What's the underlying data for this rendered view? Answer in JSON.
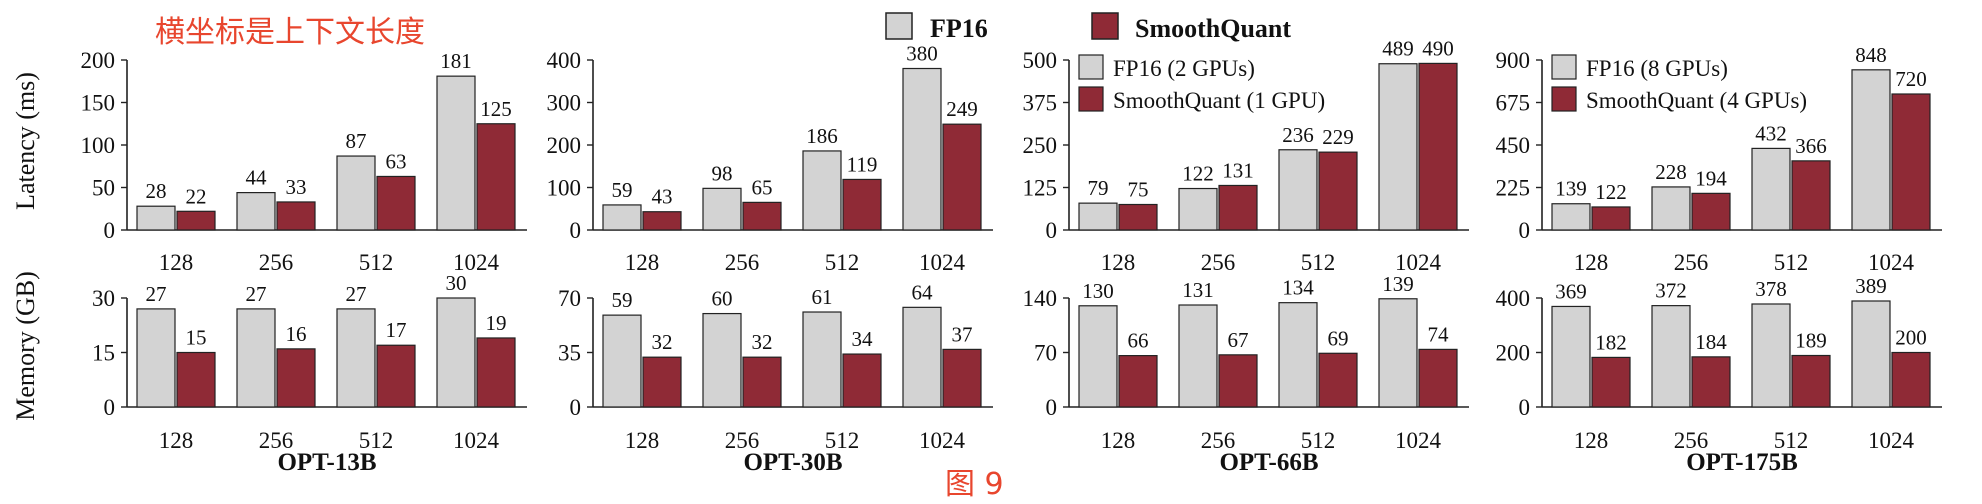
{
  "annotation_top": "横坐标是上下文长度",
  "annotation_bottom": "图 9",
  "colors": {
    "fp16": "#d3d3d3",
    "smoothquant": "#8f2a36",
    "annotation": "#e8462e",
    "axis": "#222222"
  },
  "legend_main": {
    "fp16": "FP16",
    "smoothquant": "SmoothQuant"
  },
  "ylabels": {
    "latency": "Latency (ms)",
    "memory": "Memory (GB)"
  },
  "chart_data": [
    {
      "type": "bar",
      "model": "OPT-13B",
      "metric": "Latency (ms)",
      "categories": [
        "128",
        "256",
        "512",
        "1024"
      ],
      "ylim": [
        0,
        200
      ],
      "yticks": [
        0,
        50,
        100,
        150,
        200
      ],
      "series": [
        {
          "name": "FP16",
          "values": [
            28,
            44,
            87,
            181
          ]
        },
        {
          "name": "SmoothQuant",
          "values": [
            22,
            33,
            63,
            125
          ]
        }
      ]
    },
    {
      "type": "bar",
      "model": "OPT-30B",
      "metric": "Latency (ms)",
      "categories": [
        "128",
        "256",
        "512",
        "1024"
      ],
      "ylim": [
        0,
        400
      ],
      "yticks": [
        0,
        100,
        200,
        300,
        400
      ],
      "series": [
        {
          "name": "FP16",
          "values": [
            59,
            98,
            186,
            380
          ]
        },
        {
          "name": "SmoothQuant",
          "values": [
            43,
            65,
            119,
            249
          ]
        }
      ]
    },
    {
      "type": "bar",
      "model": "OPT-66B",
      "metric": "Latency (ms)",
      "categories": [
        "128",
        "256",
        "512",
        "1024"
      ],
      "ylim": [
        0,
        500
      ],
      "yticks": [
        0,
        125,
        250,
        375,
        500
      ],
      "legend": [
        "FP16 (2 GPUs)",
        "SmoothQuant (1 GPU)"
      ],
      "series": [
        {
          "name": "FP16 (2 GPUs)",
          "values": [
            79,
            122,
            236,
            489
          ]
        },
        {
          "name": "SmoothQuant (1 GPU)",
          "values": [
            75,
            131,
            229,
            490
          ]
        }
      ]
    },
    {
      "type": "bar",
      "model": "OPT-175B",
      "metric": "Latency (ms)",
      "categories": [
        "128",
        "256",
        "512",
        "1024"
      ],
      "ylim": [
        0,
        900
      ],
      "yticks": [
        0,
        225,
        450,
        675,
        900
      ],
      "legend": [
        "FP16 (8 GPUs)",
        "SmoothQuant (4 GPUs)"
      ],
      "series": [
        {
          "name": "FP16 (8 GPUs)",
          "values": [
            139,
            228,
            432,
            848
          ]
        },
        {
          "name": "SmoothQuant (4 GPUs)",
          "values": [
            122,
            194,
            366,
            720
          ]
        }
      ]
    },
    {
      "type": "bar",
      "model": "OPT-13B",
      "metric": "Memory (GB)",
      "categories": [
        "128",
        "256",
        "512",
        "1024"
      ],
      "ylim": [
        0,
        30
      ],
      "yticks": [
        0,
        15,
        30
      ],
      "series": [
        {
          "name": "FP16",
          "values": [
            27,
            27,
            27,
            30
          ]
        },
        {
          "name": "SmoothQuant",
          "values": [
            15,
            16,
            17,
            19
          ]
        }
      ]
    },
    {
      "type": "bar",
      "model": "OPT-30B",
      "metric": "Memory (GB)",
      "categories": [
        "128",
        "256",
        "512",
        "1024"
      ],
      "ylim": [
        0,
        70
      ],
      "yticks": [
        0,
        35,
        70
      ],
      "series": [
        {
          "name": "FP16",
          "values": [
            59,
            60,
            61,
            64
          ]
        },
        {
          "name": "SmoothQuant",
          "values": [
            32,
            32,
            34,
            37
          ]
        }
      ]
    },
    {
      "type": "bar",
      "model": "OPT-66B",
      "metric": "Memory (GB)",
      "categories": [
        "128",
        "256",
        "512",
        "1024"
      ],
      "ylim": [
        0,
        140
      ],
      "yticks": [
        0,
        70,
        140
      ],
      "series": [
        {
          "name": "FP16",
          "values": [
            130,
            131,
            134,
            139
          ]
        },
        {
          "name": "SmoothQuant",
          "values": [
            66,
            67,
            69,
            74
          ]
        }
      ]
    },
    {
      "type": "bar",
      "model": "OPT-175B",
      "metric": "Memory (GB)",
      "categories": [
        "128",
        "256",
        "512",
        "1024"
      ],
      "ylim": [
        0,
        400
      ],
      "yticks": [
        0,
        200,
        400
      ],
      "series": [
        {
          "name": "FP16",
          "values": [
            369,
            372,
            378,
            389
          ]
        },
        {
          "name": "SmoothQuant",
          "values": [
            182,
            184,
            189,
            200
          ]
        }
      ]
    }
  ]
}
